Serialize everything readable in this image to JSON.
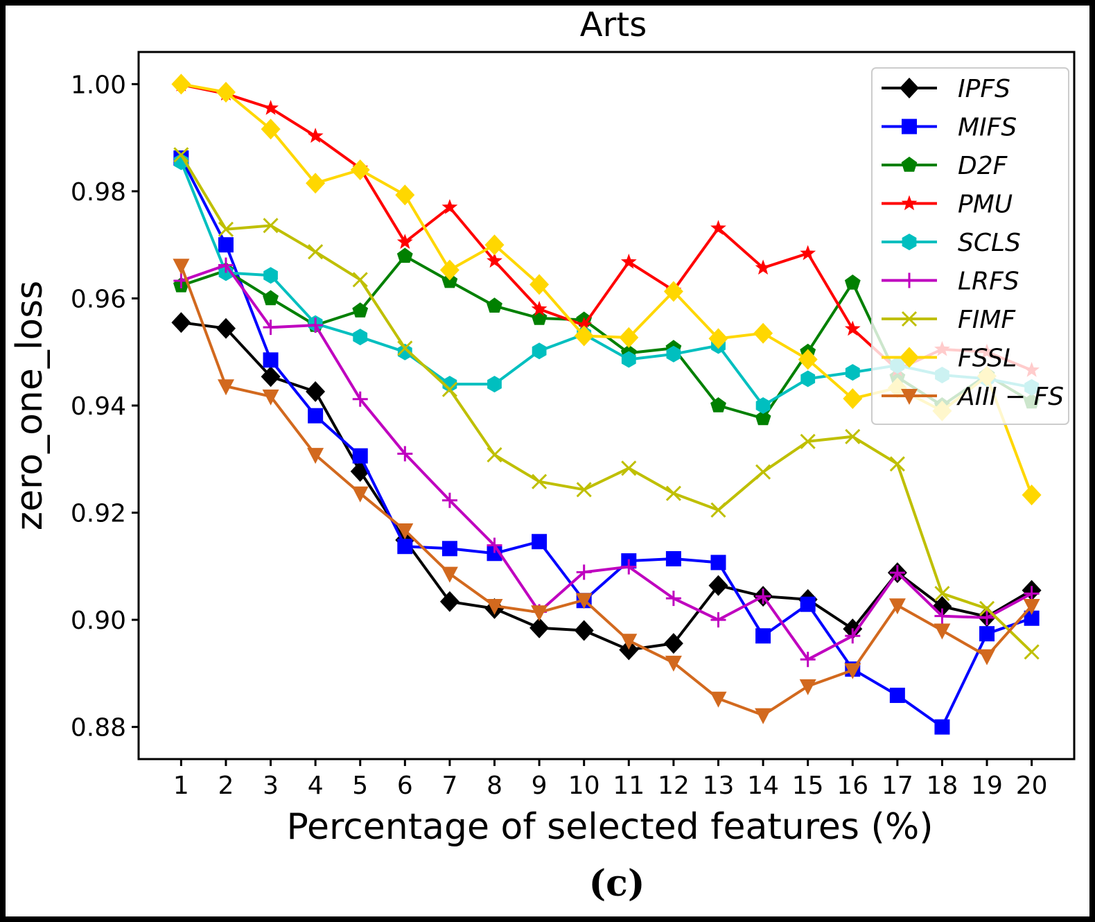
{
  "chart_data": {
    "type": "line",
    "title": "Arts",
    "xlabel": "Percentage of selected features (%)",
    "ylabel": "zero_one_loss",
    "caption": "(c)",
    "x": [
      1,
      2,
      3,
      4,
      5,
      6,
      7,
      8,
      9,
      10,
      11,
      12,
      13,
      14,
      15,
      16,
      17,
      18,
      19,
      20
    ],
    "xlim": [
      0.05,
      20.95
    ],
    "ylim": [
      0.874,
      1.006
    ],
    "yticks": [
      0.88,
      0.9,
      0.92,
      0.94,
      0.96,
      0.98,
      1.0
    ],
    "ytick_labels": [
      "0.88",
      "0.90",
      "0.92",
      "0.94",
      "0.96",
      "0.98",
      "1.00"
    ],
    "grid": false,
    "legend_position": "top-right",
    "series": [
      {
        "name": "IPFS",
        "color": "#000000",
        "marker": "diamond",
        "values": [
          0.9555,
          0.9544,
          0.9454,
          0.9426,
          0.9277,
          0.9149,
          0.9034,
          0.9021,
          0.8985,
          0.898,
          0.8944,
          0.8956,
          0.9064,
          0.9044,
          0.9038,
          0.8983,
          0.9088,
          0.9025,
          0.9006,
          0.9055
        ]
      },
      {
        "name": "MIFS",
        "color": "#0000ff",
        "marker": "square",
        "values": [
          0.9862,
          0.97,
          0.9485,
          0.9381,
          0.9306,
          0.9137,
          0.9133,
          0.9124,
          0.9146,
          0.9036,
          0.911,
          0.9114,
          0.9107,
          0.897,
          0.9029,
          0.8908,
          0.8859,
          0.88,
          0.8974,
          0.9003
        ]
      },
      {
        "name": "D2F",
        "color": "#008000",
        "marker": "pentagon",
        "values": [
          0.9624,
          0.9652,
          0.96,
          0.955,
          0.9577,
          0.9679,
          0.9632,
          0.9586,
          0.9563,
          0.956,
          0.9498,
          0.9507,
          0.94,
          0.9376,
          0.95,
          0.9629,
          0.9453,
          0.94,
          0.9457,
          0.9407
        ]
      },
      {
        "name": "PMU",
        "color": "#ff0000",
        "marker": "star",
        "values": [
          0.9999,
          0.9982,
          0.9955,
          0.9903,
          0.9843,
          0.9705,
          0.977,
          0.967,
          0.958,
          0.955,
          0.9668,
          0.9615,
          0.9731,
          0.9657,
          0.9684,
          0.9543,
          0.9467,
          0.9505,
          0.95,
          0.9466
        ]
      },
      {
        "name": "SCLS",
        "color": "#00bfbf",
        "marker": "hexagon",
        "values": [
          0.9855,
          0.9648,
          0.9643,
          0.9553,
          0.9528,
          0.95,
          0.944,
          0.944,
          0.9502,
          0.9533,
          0.9486,
          0.9496,
          0.9512,
          0.94,
          0.945,
          0.9462,
          0.9475,
          0.9457,
          0.945,
          0.9434
        ]
      },
      {
        "name": "LRFS",
        "color": "#bf00bf",
        "marker": "plus",
        "values": [
          0.9633,
          0.9662,
          0.9546,
          0.955,
          0.9412,
          0.931,
          0.9223,
          0.9139,
          0.9015,
          0.9089,
          0.9099,
          0.904,
          0.9,
          0.9044,
          0.8926,
          0.897,
          0.9088,
          0.9007,
          0.9004,
          0.9049
        ]
      },
      {
        "name": "FIMF",
        "color": "#bfbf00",
        "marker": "x",
        "values": [
          0.9868,
          0.9729,
          0.9736,
          0.9687,
          0.9635,
          0.9507,
          0.943,
          0.9308,
          0.9258,
          0.9243,
          0.9283,
          0.9236,
          0.9205,
          0.9276,
          0.9333,
          0.9342,
          0.9291,
          0.9049,
          0.9021,
          0.894
        ]
      },
      {
        "name": "FSSL",
        "color": "#ffd700",
        "marker": "diamond",
        "values": [
          1.0,
          0.9985,
          0.9916,
          0.9815,
          0.984,
          0.9793,
          0.9653,
          0.97,
          0.9626,
          0.953,
          0.9527,
          0.9613,
          0.9525,
          0.9535,
          0.9486,
          0.9413,
          0.9433,
          0.939,
          0.9455,
          0.9233
        ]
      },
      {
        "name": "AIII − FS",
        "color": "#d2691e",
        "marker": "triangle-down",
        "values": [
          0.9661,
          0.9436,
          0.9417,
          0.9308,
          0.9236,
          0.9167,
          0.9086,
          0.9026,
          0.9014,
          0.9037,
          0.8961,
          0.892,
          0.8853,
          0.8822,
          0.8876,
          0.8906,
          0.9027,
          0.898,
          0.8932,
          0.9026
        ]
      }
    ]
  }
}
